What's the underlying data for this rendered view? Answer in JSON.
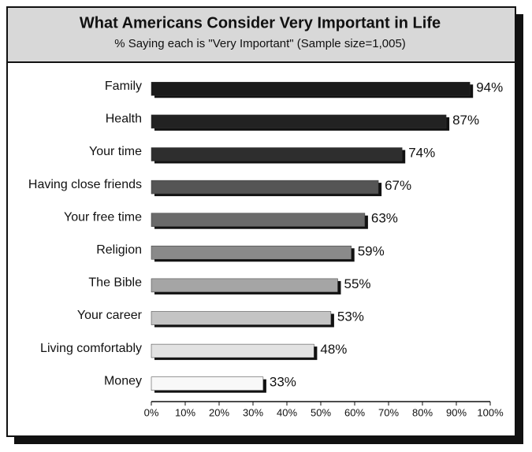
{
  "chart_data": {
    "type": "bar",
    "orientation": "horizontal",
    "title": "What Americans Consider Very Important in Life",
    "subtitle": "% Saying each is \"Very Important\" (Sample size=1,005)",
    "categories": [
      "Family",
      "Health",
      "Your time",
      "Having close friends",
      "Your free time",
      "Religion",
      "The Bible",
      "Your career",
      "Living comfortably",
      "Money"
    ],
    "values": [
      94,
      87,
      74,
      67,
      63,
      59,
      55,
      53,
      48,
      33
    ],
    "value_labels": [
      "94%",
      "87%",
      "74%",
      "67%",
      "63%",
      "59%",
      "55%",
      "53%",
      "48%",
      "33%"
    ],
    "colors": [
      "#1a1a1a",
      "#222222",
      "#2e2e2e",
      "#555555",
      "#6a6a6a",
      "#8a8a8a",
      "#a5a5a5",
      "#c4c4c4",
      "#e2e2e2",
      "#f8f8f8"
    ],
    "xlim": [
      0,
      100
    ],
    "xticks": [
      {
        "value": 0,
        "label": "0%"
      },
      {
        "value": 10,
        "label": "10%"
      },
      {
        "value": 20,
        "label": "20%"
      },
      {
        "value": 30,
        "label": "30%"
      },
      {
        "value": 40,
        "label": "40%"
      },
      {
        "value": 50,
        "label": "50%"
      },
      {
        "value": 60,
        "label": "60%"
      },
      {
        "value": 70,
        "label": "70%"
      },
      {
        "value": 80,
        "label": "80%"
      },
      {
        "value": 90,
        "label": "90%"
      },
      {
        "value": 100,
        "label": "100%"
      }
    ]
  }
}
